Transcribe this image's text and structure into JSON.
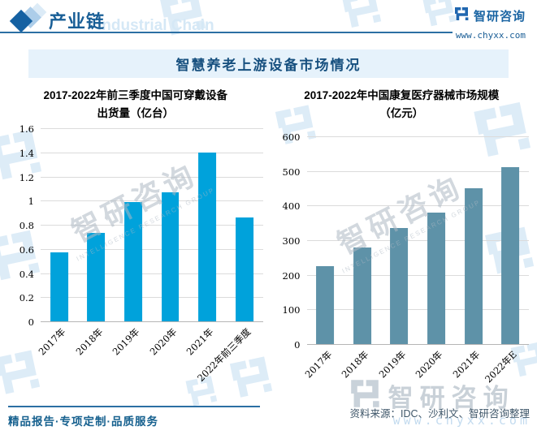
{
  "header": {
    "title": "产业链",
    "watermark": "Industrial Chain",
    "brand": {
      "name": "智研咨询",
      "url": "www.chyxx.com"
    }
  },
  "banner": {
    "title": "智慧养老上游设备市场情况"
  },
  "chart_data": [
    {
      "type": "bar",
      "title": "2017-2022年前三季度中国可穿戴设备出货量（亿台）",
      "title_lines": [
        "2017-2022年前三季度中国可穿戴设备",
        "出货量（亿台）"
      ],
      "categories": [
        "2017年",
        "2018年",
        "2019年",
        "2020年",
        "2021年",
        "2022年前三季度"
      ],
      "values": [
        0.57,
        0.73,
        0.99,
        1.07,
        1.4,
        0.86
      ],
      "yticks": [
        "0",
        "0.2",
        "0.4",
        "0.6",
        "0.8",
        "1",
        "1.2",
        "1.4",
        "1.6"
      ],
      "ylim": [
        0,
        1.6
      ],
      "xlabel": "",
      "ylabel": "",
      "bar_color": "#00A2DB",
      "grid": true,
      "legend": false
    },
    {
      "type": "bar",
      "title": "2017-2022年中国康复医疗器械市场规模（亿元）",
      "title_lines": [
        "2017-2022年中国康复医疗器械市场规模",
        "（亿元）"
      ],
      "categories": [
        "2017年",
        "2018年",
        "2019年",
        "2020年",
        "2021年",
        "2022年E"
      ],
      "values": [
        225,
        280,
        335,
        380,
        450,
        510
      ],
      "yticks": [
        "0",
        "100",
        "200",
        "300",
        "400",
        "500",
        "600"
      ],
      "ylim": [
        0,
        600
      ],
      "xlabel": "",
      "ylabel": "",
      "bar_color": "#5E92A8",
      "grid": true,
      "legend": false
    }
  ],
  "footer": {
    "tagline": "精品报告·专项定制·品质服务",
    "source": "资料来源：IDC、沙利文、智研咨询整理"
  },
  "watermark": {
    "brand_text": "智研咨询",
    "brand_subtext": "INTELLIGENCE RESEARCH GROUP",
    "url": "www.chyxx.com"
  }
}
